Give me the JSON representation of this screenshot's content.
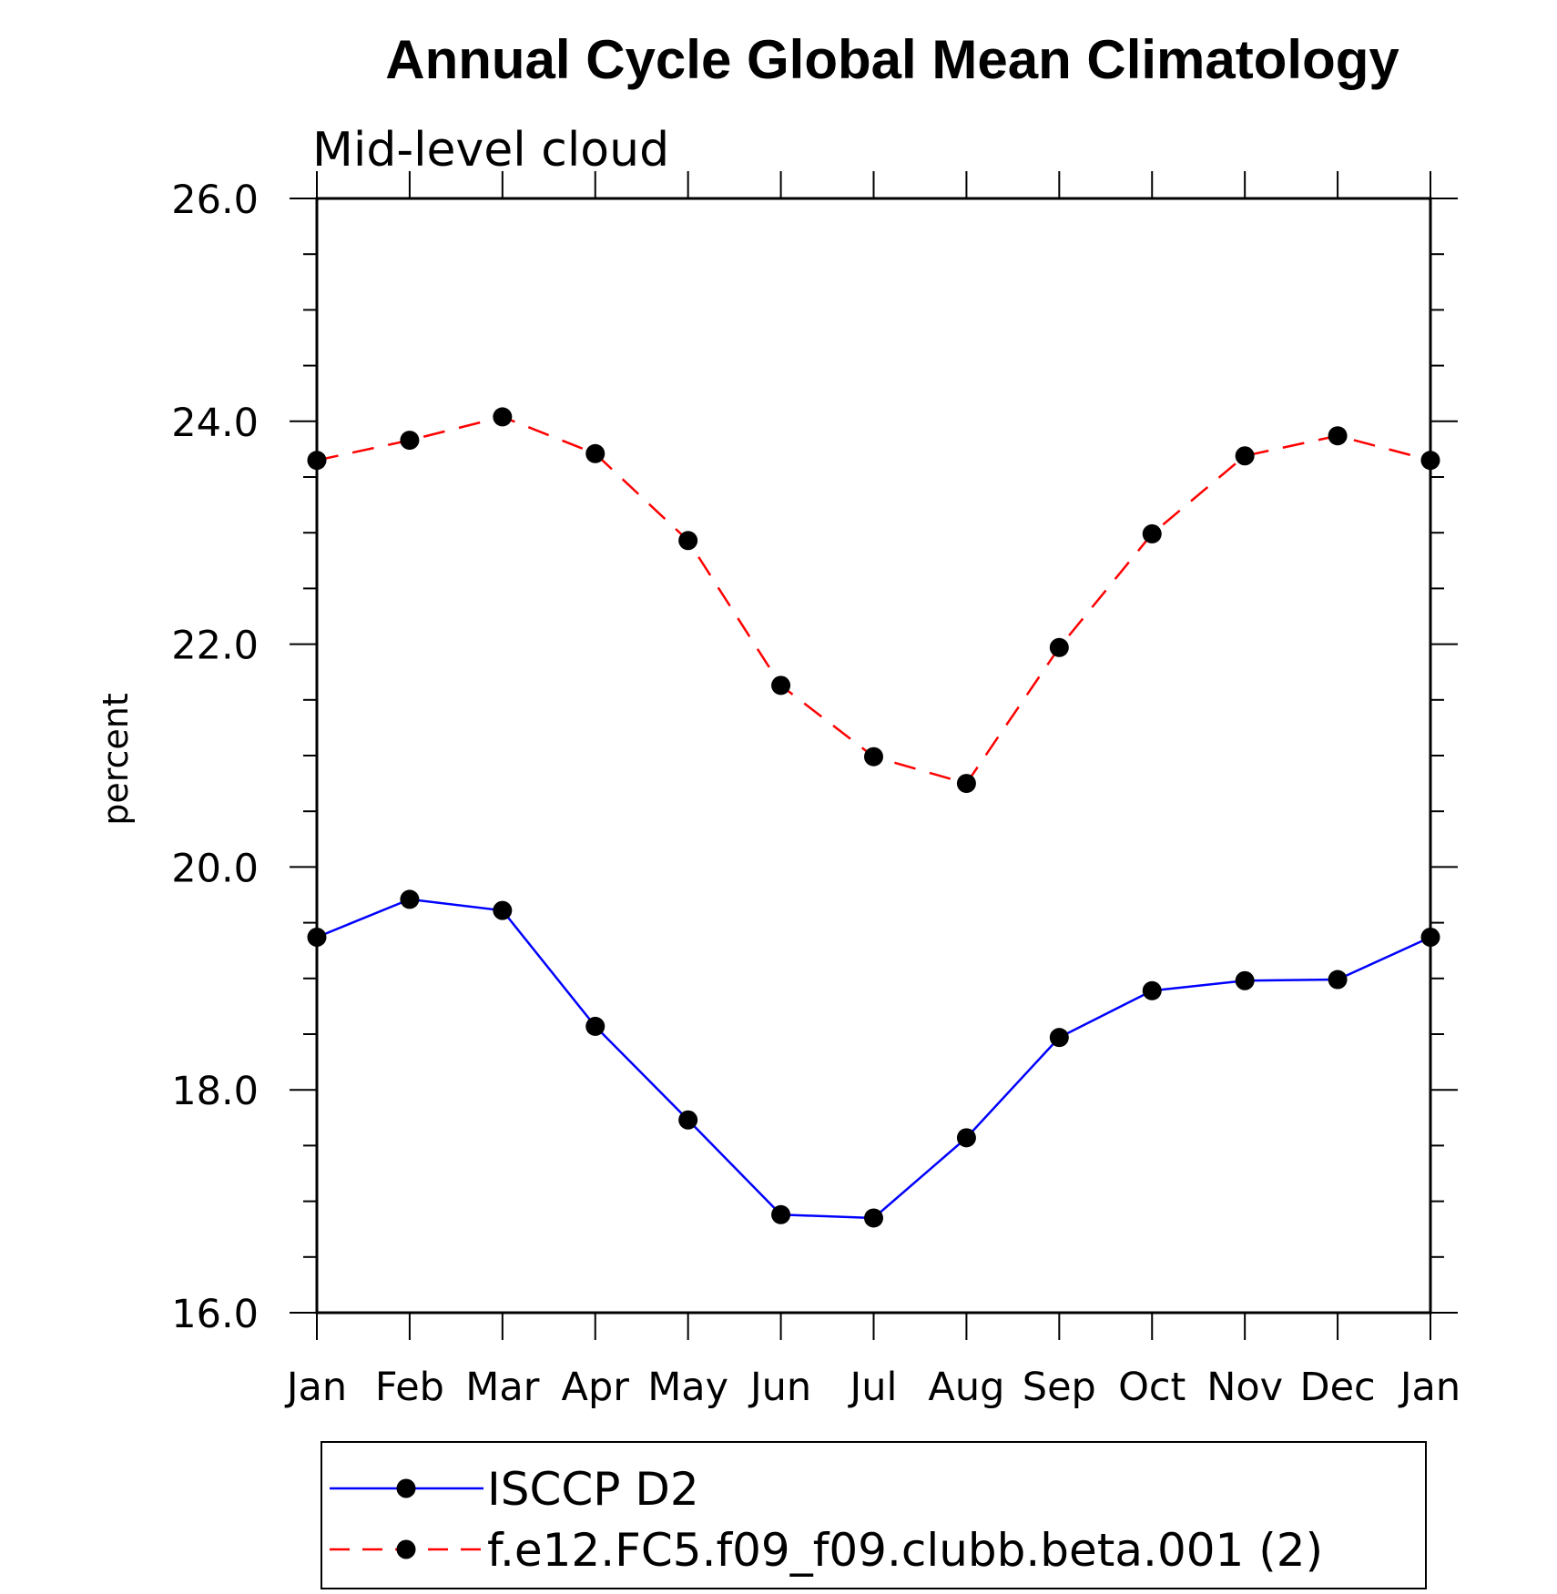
{
  "chart_data": {
    "type": "line",
    "title": "Annual Cycle Global Mean Climatology",
    "subtitle": "Mid-level cloud",
    "xlabel": "",
    "ylabel": "percent",
    "categories": [
      "Jan",
      "Feb",
      "Mar",
      "Apr",
      "May",
      "Jun",
      "Jul",
      "Aug",
      "Sep",
      "Oct",
      "Nov",
      "Dec",
      "Jan"
    ],
    "ylim": [
      16.0,
      26.0
    ],
    "yticks": [
      "16.0",
      "18.0",
      "20.0",
      "22.0",
      "24.0",
      "26.0"
    ],
    "grid": false,
    "legend_position": "bottom",
    "series": [
      {
        "name": "ISCCP D2",
        "color": "#0000ff",
        "line_style": "solid",
        "marker": "filled-circle",
        "values": [
          19.37,
          19.71,
          19.61,
          18.57,
          17.73,
          16.88,
          16.85,
          17.57,
          18.47,
          18.89,
          18.98,
          18.99,
          19.37
        ]
      },
      {
        "name": "f.e12.FC5.f09_f09.clubb.beta.001 (2)",
        "color": "#ff0000",
        "line_style": "dashed",
        "marker": "filled-circle",
        "values": [
          23.65,
          23.83,
          24.04,
          23.71,
          22.93,
          21.63,
          20.99,
          20.75,
          21.97,
          22.99,
          23.69,
          23.87,
          23.65
        ]
      }
    ]
  }
}
